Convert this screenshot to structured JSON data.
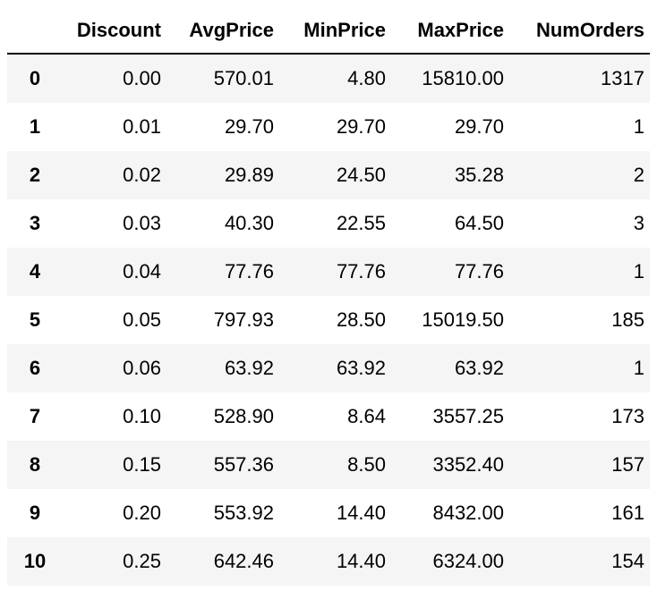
{
  "table": {
    "index_header": "",
    "columns": [
      "Discount",
      "AvgPrice",
      "MinPrice",
      "MaxPrice",
      "NumOrders"
    ],
    "rows": [
      {
        "index": "0",
        "cells": [
          "0.00",
          "570.01",
          "4.80",
          "15810.00",
          "1317"
        ]
      },
      {
        "index": "1",
        "cells": [
          "0.01",
          "29.70",
          "29.70",
          "29.70",
          "1"
        ]
      },
      {
        "index": "2",
        "cells": [
          "0.02",
          "29.89",
          "24.50",
          "35.28",
          "2"
        ]
      },
      {
        "index": "3",
        "cells": [
          "0.03",
          "40.30",
          "22.55",
          "64.50",
          "3"
        ]
      },
      {
        "index": "4",
        "cells": [
          "0.04",
          "77.76",
          "77.76",
          "77.76",
          "1"
        ]
      },
      {
        "index": "5",
        "cells": [
          "0.05",
          "797.93",
          "28.50",
          "15019.50",
          "185"
        ]
      },
      {
        "index": "6",
        "cells": [
          "0.06",
          "63.92",
          "63.92",
          "63.92",
          "1"
        ]
      },
      {
        "index": "7",
        "cells": [
          "0.10",
          "528.90",
          "8.64",
          "3557.25",
          "173"
        ]
      },
      {
        "index": "8",
        "cells": [
          "0.15",
          "557.36",
          "8.50",
          "3352.40",
          "157"
        ]
      },
      {
        "index": "9",
        "cells": [
          "0.20",
          "553.92",
          "14.40",
          "8432.00",
          "161"
        ]
      },
      {
        "index": "10",
        "cells": [
          "0.25",
          "642.46",
          "14.40",
          "6324.00",
          "154"
        ]
      }
    ]
  },
  "colors": {
    "stripe": "#f5f5f5",
    "background": "#ffffff",
    "text": "#000000",
    "header_rule": "#000000"
  }
}
